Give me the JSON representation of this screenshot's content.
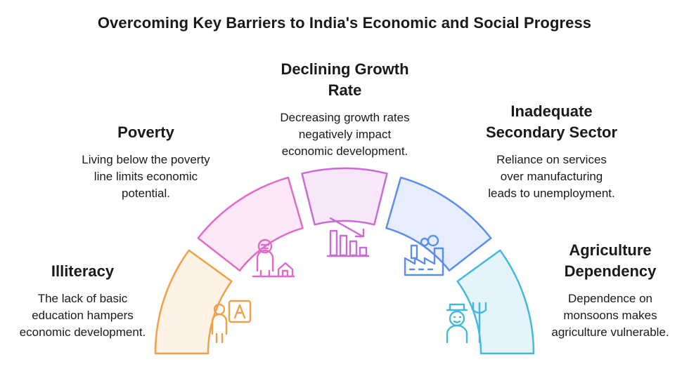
{
  "title": "Overcoming Key Barriers to India's Economic and Social Progress",
  "items": [
    {
      "heading": "Illiteracy",
      "description": "The lack of basic\neducation hampers\neconomic development.",
      "color": "#F0A04B",
      "fill": "#FEF2E4",
      "icon": "teacher-board-icon"
    },
    {
      "heading": "Poverty",
      "description": "Living below the poverty\nline limits economic\npotential.",
      "color": "#E06AC9",
      "fill": "#FCE8F7",
      "icon": "person-house-icon"
    },
    {
      "heading": "Declining Growth\nRate",
      "description": "Decreasing growth rates\nnegatively impact\neconomic development.",
      "color": "#C86BD6",
      "fill": "#F8E6FA",
      "icon": "declining-bar-chart-icon"
    },
    {
      "heading": "Inadequate\nSecondary Sector",
      "description": "Reliance on services\nover manufacturing\nleads to unemployment.",
      "color": "#5B8DEF",
      "fill": "#E6EEFD",
      "icon": "factory-icon"
    },
    {
      "heading": "Agriculture\nDependency",
      "description": "Dependence on\nmonsoons makes\nagriculture vulnerable.",
      "color": "#45B8E0",
      "fill": "#E3F5FB",
      "icon": "farmer-pitchfork-icon"
    }
  ]
}
